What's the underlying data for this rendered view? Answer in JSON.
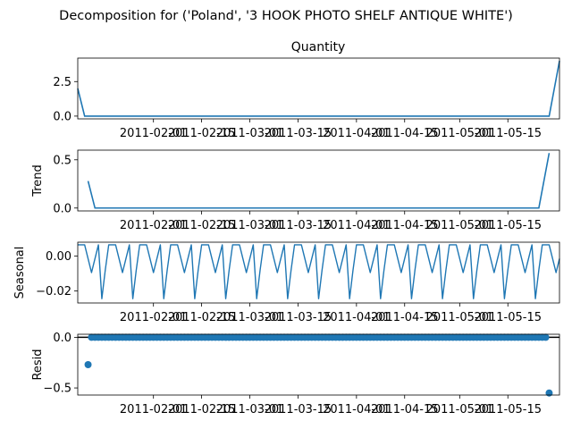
{
  "figure_title": "Decomposition for ('Poland', '3 HOOK PHOTO SHELF ANTIQUE WHITE')",
  "chart_data": [
    {
      "type": "line",
      "panel": "observed",
      "title": "Quantity",
      "ylabel": "",
      "ylim": [
        -0.2,
        4.2
      ],
      "yticks": [
        "0.0",
        "2.5"
      ],
      "ytick_values": [
        0,
        2.5
      ],
      "series": [
        {
          "values": [
            2,
            0,
            0,
            4
          ]
        }
      ],
      "x": [
        "2011-01-10",
        "2011-01-12",
        "2011-05-27",
        "2011-05-30"
      ],
      "xticks": [
        "2011-02-01",
        "2011-02-15",
        "2011-03-01",
        "2011-03-15",
        "2011-04-01",
        "2011-04-15",
        "2011-05-01",
        "2011-05-15"
      ],
      "color": "#1f77b4"
    },
    {
      "type": "line",
      "panel": "trend",
      "title": "",
      "ylabel": "Trend",
      "ylim": [
        -0.03,
        0.6
      ],
      "yticks": [
        "0.0",
        "0.5"
      ],
      "ytick_values": [
        0,
        0.5
      ],
      "series": [
        {
          "values": [
            0.28,
            0,
            0,
            0.57
          ]
        }
      ],
      "x": [
        "2011-01-13",
        "2011-01-15",
        "2011-05-24",
        "2011-05-27"
      ],
      "xticks": [
        "2011-02-01",
        "2011-02-15",
        "2011-03-01",
        "2011-03-15",
        "2011-04-01",
        "2011-04-15",
        "2011-05-01",
        "2011-05-15"
      ],
      "color": "#1f77b4"
    },
    {
      "type": "line",
      "panel": "seasonal",
      "title": "",
      "ylabel": "Seasonal",
      "ylim": [
        -0.027,
        0.008
      ],
      "yticks": [
        "0.00",
        "−0.02"
      ],
      "ytick_values": [
        0,
        -0.02
      ],
      "period_days": 7,
      "start": "2011-01-10",
      "end": "2011-05-30",
      "pattern": [
        0.0065,
        0.0065,
        0.0065,
        -0.0015,
        -0.0095,
        -0.0015,
        0.0065,
        -0.0245,
        -0.008
      ],
      "xticks": [
        "2011-02-01",
        "2011-02-15",
        "2011-03-01",
        "2011-03-15",
        "2011-04-01",
        "2011-04-15",
        "2011-05-01",
        "2011-05-15"
      ],
      "color": "#1f77b4"
    },
    {
      "type": "scatter",
      "panel": "resid",
      "title": "",
      "ylabel": "Resid",
      "ylim": [
        -0.57,
        0.03
      ],
      "yticks": [
        "0.0",
        "−0.5"
      ],
      "ytick_values": [
        0,
        -0.5
      ],
      "start": "2011-01-13",
      "end": "2011-05-27",
      "outliers": [
        {
          "x": "2011-01-13",
          "y": -0.27
        },
        {
          "x": "2011-05-27",
          "y": -0.55
        }
      ],
      "baseline": 0,
      "xticks": [
        "2011-02-01",
        "2011-02-15",
        "2011-03-01",
        "2011-03-15",
        "2011-04-01",
        "2011-04-15",
        "2011-05-01",
        "2011-05-15"
      ],
      "color": "#1f77b4"
    }
  ]
}
